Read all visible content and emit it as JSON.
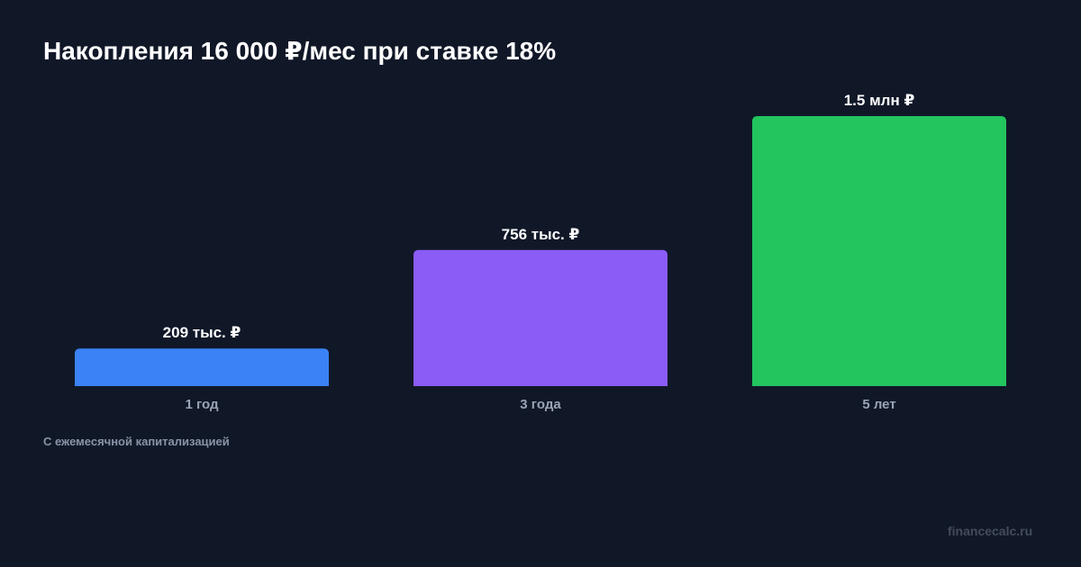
{
  "title": "Накопления 16 000 ₽/мес при ставке 18%",
  "subtitle": "С ежемесячной капитализацией",
  "source": "financecalc.ru",
  "chart_data": {
    "type": "bar",
    "categories": [
      "1 год",
      "3 года",
      "5 лет"
    ],
    "values": [
      209000,
      756000,
      1500000
    ],
    "value_labels": [
      "209 тыс. ₽",
      "756 тыс. ₽",
      "1.5 млн ₽"
    ],
    "colors": [
      "#3b82f6",
      "#8b5cf6",
      "#22c55e"
    ],
    "grid": false,
    "legend": "none"
  }
}
